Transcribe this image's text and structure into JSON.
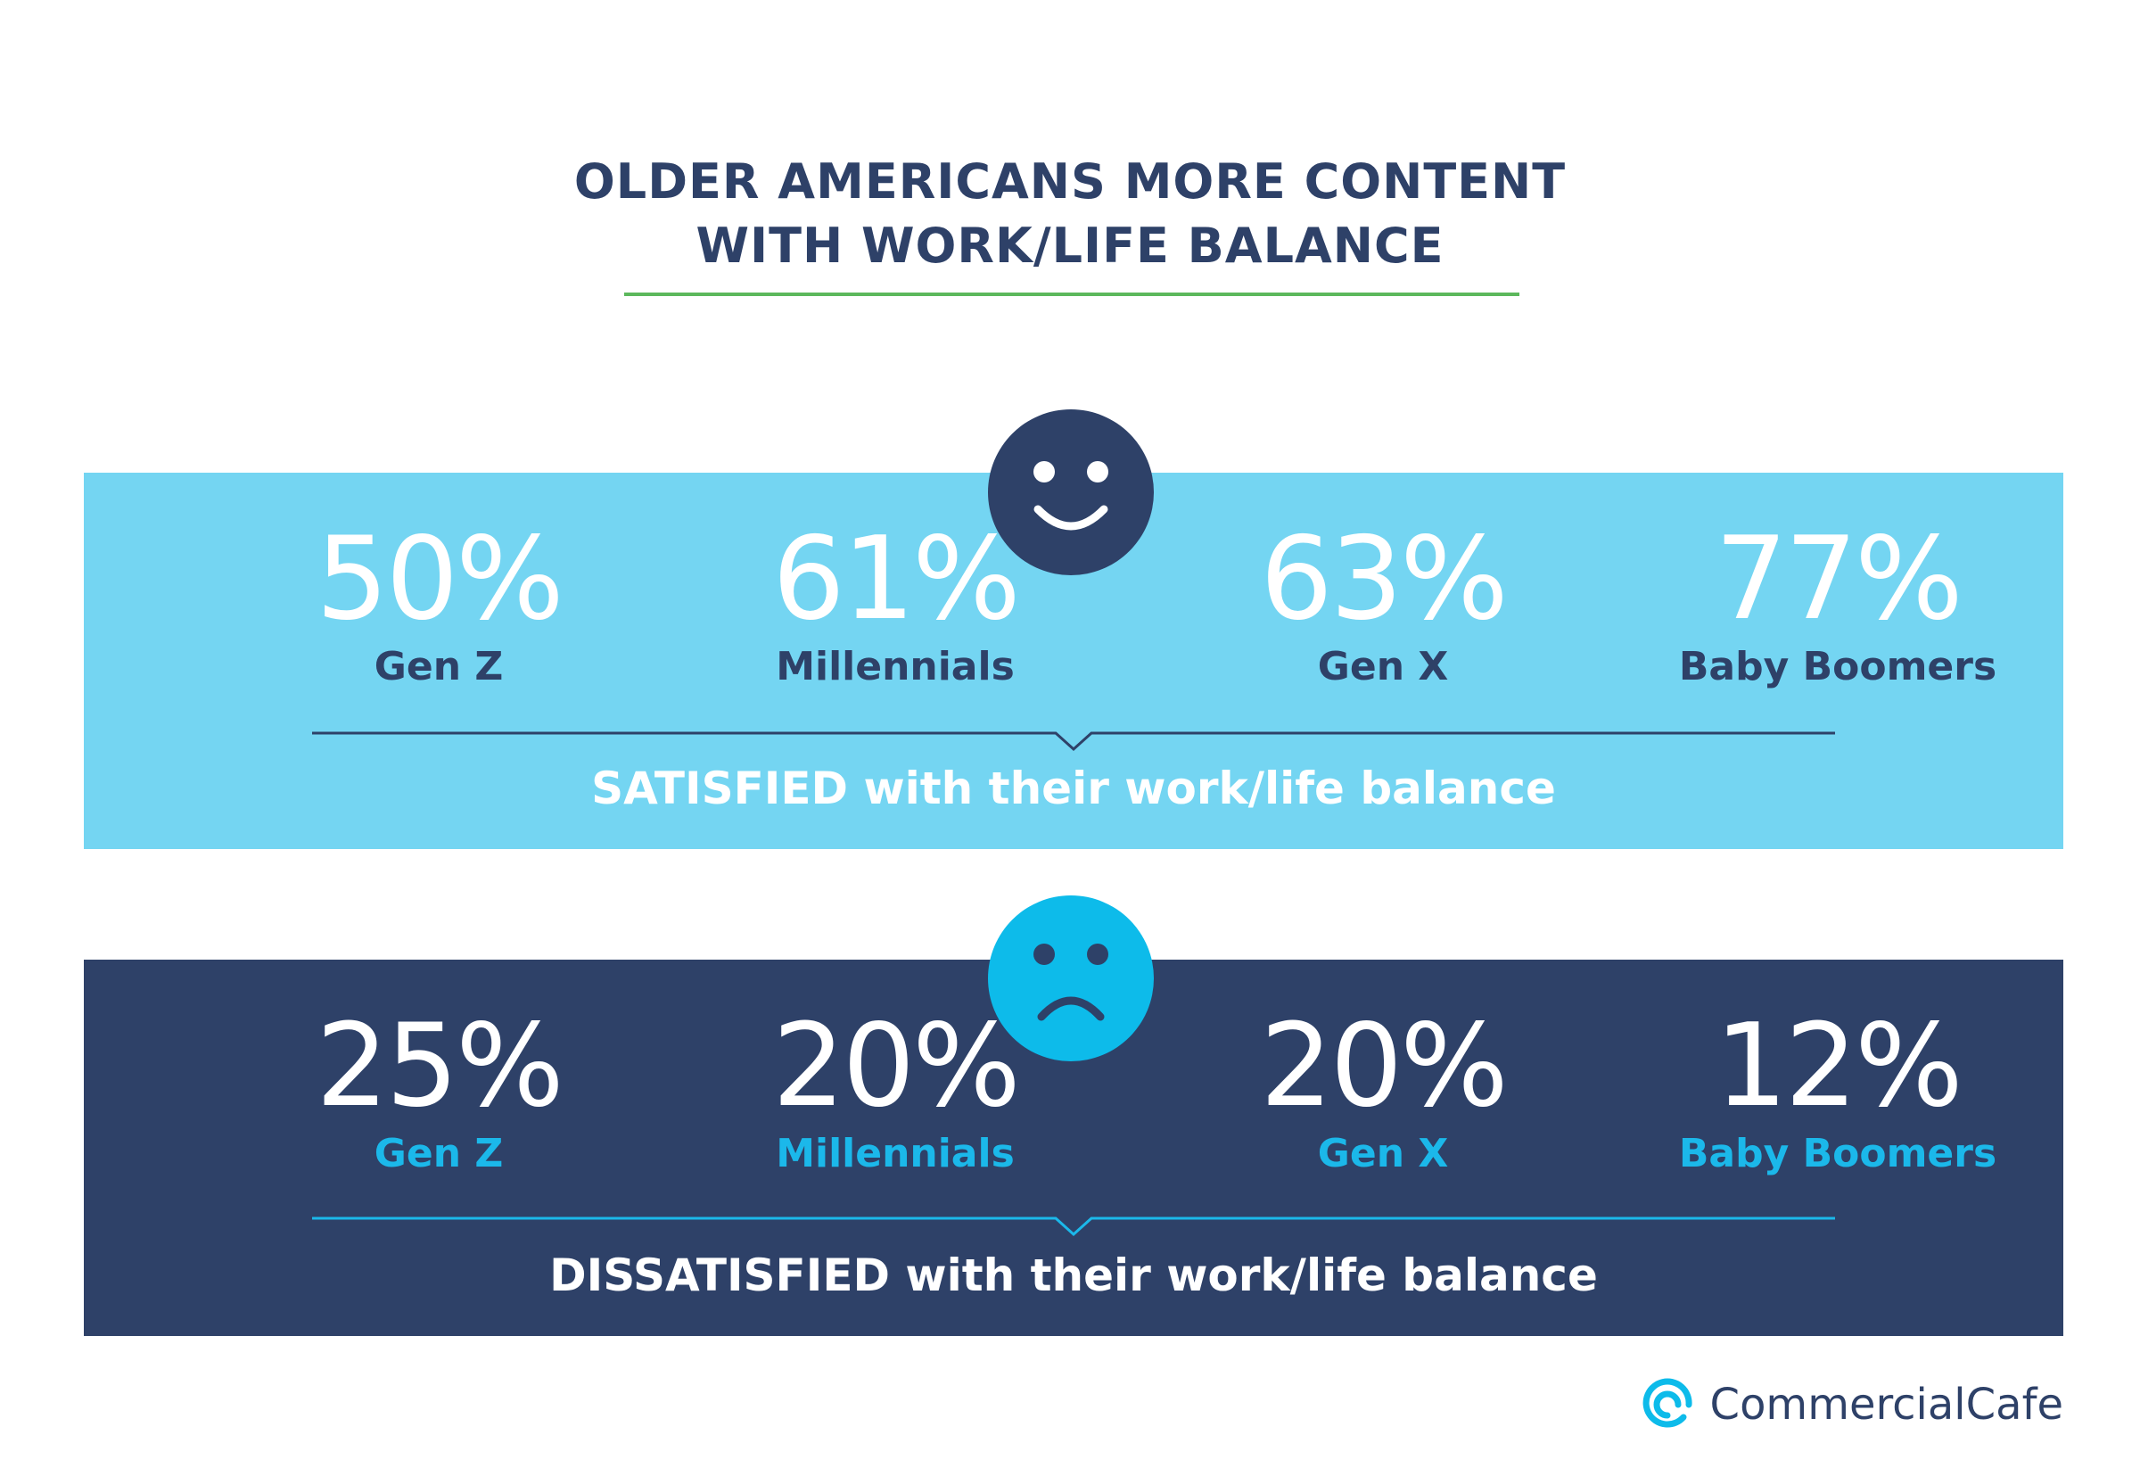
{
  "title_lines": [
    "OLDER AMERICANS MORE CONTENT",
    "WITH WORK/LIFE BALANCE"
  ],
  "colors": {
    "navy": "#2e4168",
    "light_blue": "#74d5f2",
    "accent_blue": "#0dbbea",
    "accent_green": "#5cb85c"
  },
  "brand": {
    "name": "CommercialCafe",
    "icon": "at-sign-logo-icon"
  },
  "chart_data": [
    {
      "type": "table",
      "icon": "smiley-face-icon",
      "caption": "SATISFIED with their work/life balance",
      "categories": [
        "Gen Z",
        "Millennials",
        "Gen X",
        "Baby Boomers"
      ],
      "values": [
        50,
        61,
        63,
        77
      ],
      "labels": [
        "50%",
        "61%",
        "63%",
        "77%"
      ]
    },
    {
      "type": "table",
      "icon": "sad-face-icon",
      "caption": "DISSATISFIED with their work/life balance",
      "categories": [
        "Gen Z",
        "Millennials",
        "Gen X",
        "Baby Boomers"
      ],
      "values": [
        25,
        20,
        20,
        12
      ],
      "labels": [
        "25%",
        "20%",
        "20%",
        "12%"
      ]
    }
  ]
}
